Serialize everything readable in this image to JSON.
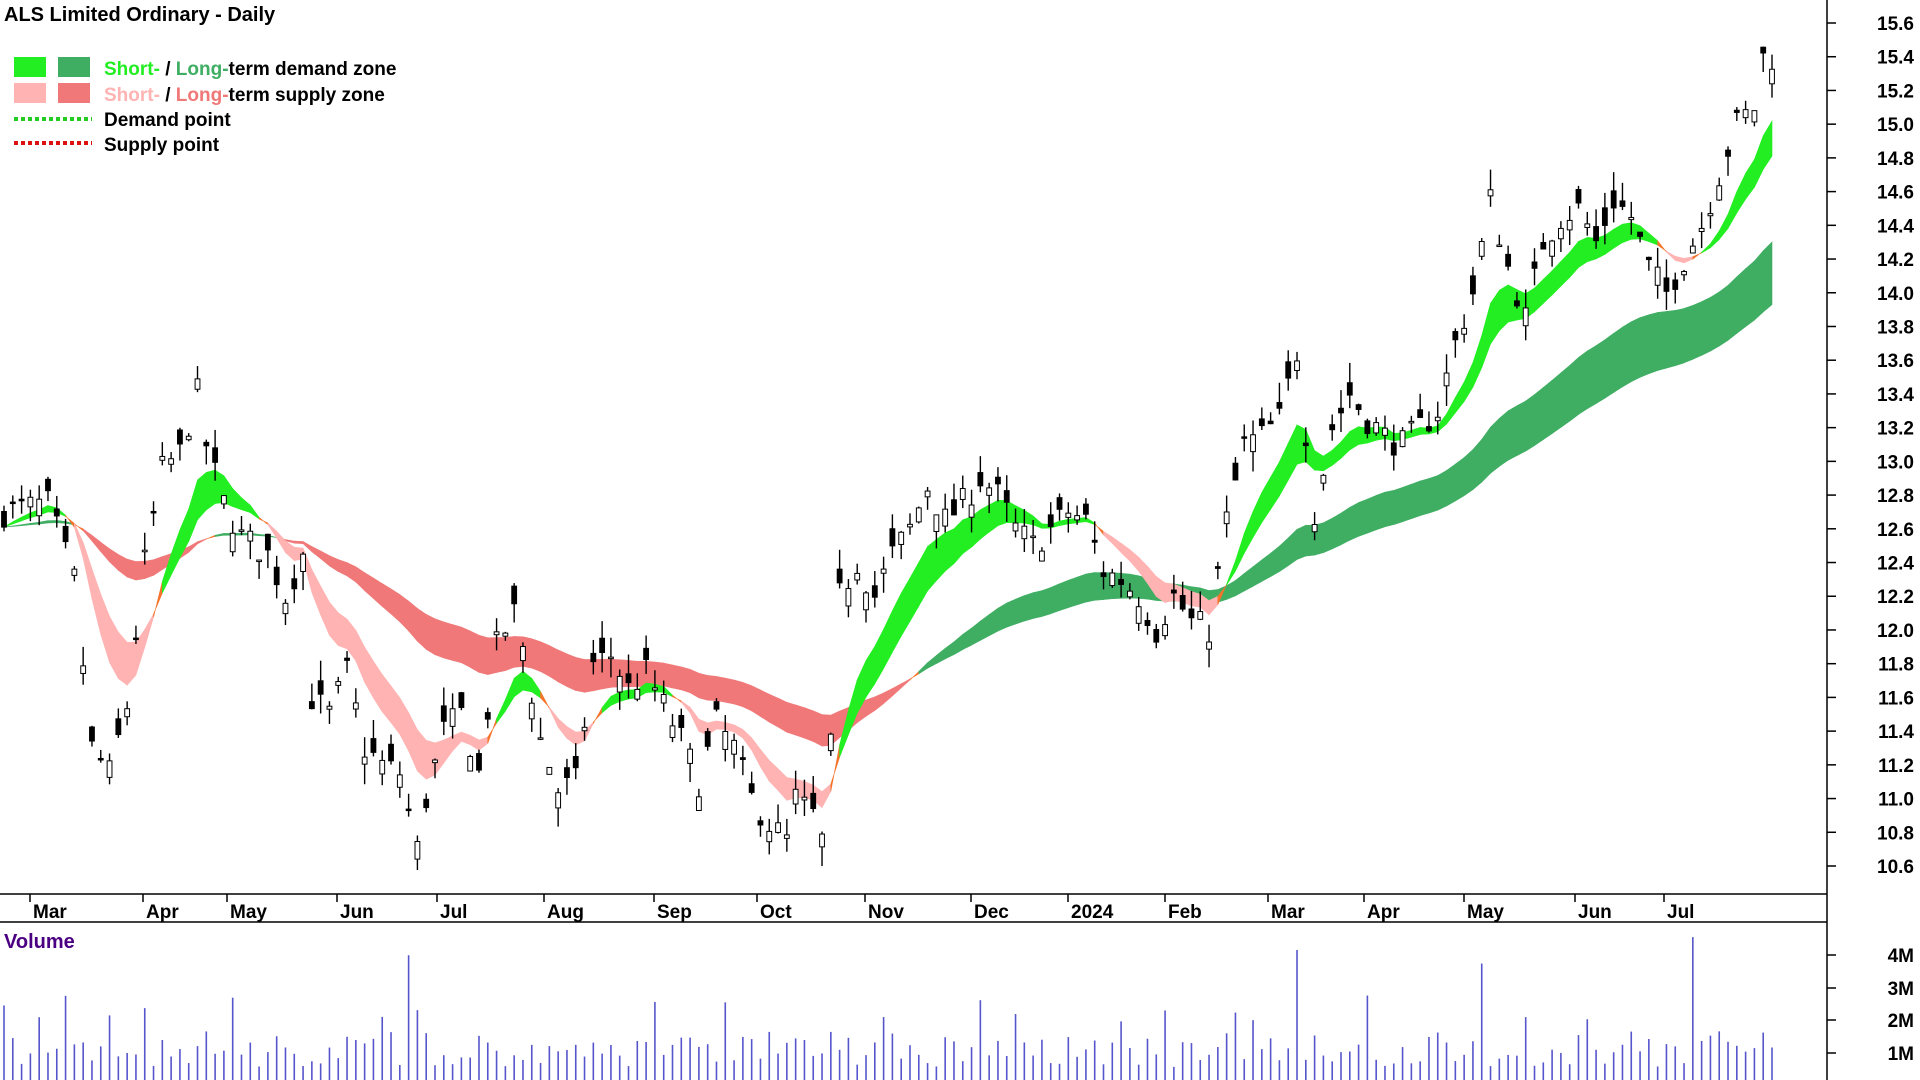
{
  "chart_data": {
    "type": "candlestick",
    "title": "ALS Limited Ordinary - Daily",
    "y_ticks": [
      10.6,
      10.8,
      11.0,
      11.2,
      11.4,
      11.6,
      11.8,
      12.0,
      12.2,
      12.4,
      12.6,
      12.8,
      13.0,
      13.2,
      13.4,
      13.6,
      13.8,
      14.0,
      14.2,
      14.4,
      14.6,
      14.8,
      15.0,
      15.2,
      15.4,
      15.6
    ],
    "x_labels": [
      "Mar",
      "Apr",
      "May",
      "Jun",
      "Jul",
      "Aug",
      "Sep",
      "Oct",
      "Nov",
      "Dec",
      "2024",
      "Feb",
      "Mar",
      "Apr",
      "May",
      "Jun",
      "Jul"
    ],
    "legend": [
      {
        "a": "Short-",
        "sep": " / ",
        "b": "Long-",
        "rest": "term demand zone",
        "color_a": "#22ee22",
        "color_b": "#3fae63"
      },
      {
        "a": "Short-",
        "sep": " / ",
        "b": "Long-",
        "rest": "term supply zone",
        "color_a": "#ffb3b3",
        "color_b": "#f07878"
      },
      {
        "text": "Demand point",
        "color": "#22cc22"
      },
      {
        "text": "Supply point",
        "color": "#dd1111"
      }
    ],
    "colors": {
      "short_demand": "#22ee22",
      "long_demand": "#3fae63",
      "short_supply": "#ffb3b3",
      "long_supply": "#f07878",
      "transition": "#f5732a",
      "volume": "#5555cc",
      "title_volume": "#4b0082"
    },
    "price_path": [
      [
        0,
        12.7
      ],
      [
        5,
        12.75
      ],
      [
        8,
        12.3
      ],
      [
        10,
        11.3
      ],
      [
        12,
        11.15
      ],
      [
        14,
        11.55
      ],
      [
        16,
        12.4
      ],
      [
        18,
        12.95
      ],
      [
        20,
        13.05
      ],
      [
        22,
        13.4
      ],
      [
        23,
        13.1
      ],
      [
        25,
        12.75
      ],
      [
        27,
        12.55
      ],
      [
        30,
        12.45
      ],
      [
        32,
        12.2
      ],
      [
        34,
        12.45
      ],
      [
        35,
        11.6
      ],
      [
        37,
        11.5
      ],
      [
        39,
        11.75
      ],
      [
        41,
        11.3
      ],
      [
        43,
        11.2
      ],
      [
        45,
        11.15
      ],
      [
        47,
        10.7
      ],
      [
        48,
        11.0
      ],
      [
        50,
        11.4
      ],
      [
        52,
        11.5
      ],
      [
        54,
        11.15
      ],
      [
        56,
        11.9
      ],
      [
        58,
        12.1
      ],
      [
        59,
        11.9
      ],
      [
        61,
        11.35
      ],
      [
        63,
        11.05
      ],
      [
        65,
        11.1
      ],
      [
        67,
        11.8
      ],
      [
        69,
        11.85
      ],
      [
        71,
        11.65
      ],
      [
        73,
        11.75
      ],
      [
        75,
        11.55
      ],
      [
        77,
        11.35
      ],
      [
        79,
        11.1
      ],
      [
        81,
        11.45
      ],
      [
        83,
        11.3
      ],
      [
        85,
        11.0
      ],
      [
        87,
        10.85
      ],
      [
        89,
        10.75
      ],
      [
        90,
        11.0
      ],
      [
        92,
        10.9
      ],
      [
        93,
        10.75
      ],
      [
        94,
        11.3
      ],
      [
        95,
        12.2
      ],
      [
        97,
        12.4
      ],
      [
        99,
        12.2
      ],
      [
        101,
        12.45
      ],
      [
        103,
        12.6
      ],
      [
        105,
        12.85
      ],
      [
        107,
        12.65
      ],
      [
        109,
        12.75
      ],
      [
        111,
        12.9
      ],
      [
        113,
        12.8
      ],
      [
        115,
        12.6
      ],
      [
        117,
        12.5
      ],
      [
        119,
        12.6
      ],
      [
        121,
        12.7
      ],
      [
        123,
        12.65
      ],
      [
        125,
        12.35
      ],
      [
        127,
        12.3
      ],
      [
        129,
        12.2
      ],
      [
        131,
        12.0
      ],
      [
        133,
        12.2
      ],
      [
        135,
        12.05
      ],
      [
        137,
        12.0
      ],
      [
        139,
        12.65
      ],
      [
        141,
        13.1
      ],
      [
        143,
        13.15
      ],
      [
        145,
        13.25
      ],
      [
        147,
        13.65
      ],
      [
        149,
        12.7
      ],
      [
        151,
        13.2
      ],
      [
        153,
        13.4
      ],
      [
        155,
        13.25
      ],
      [
        157,
        13.15
      ],
      [
        159,
        13.1
      ],
      [
        161,
        13.2
      ],
      [
        163,
        13.3
      ],
      [
        165,
        13.7
      ],
      [
        167,
        14.0
      ],
      [
        169,
        14.55
      ],
      [
        171,
        14.15
      ],
      [
        173,
        13.85
      ],
      [
        175,
        14.3
      ],
      [
        177,
        14.45
      ],
      [
        179,
        14.5
      ],
      [
        181,
        14.3
      ],
      [
        183,
        14.55
      ],
      [
        185,
        14.45
      ],
      [
        187,
        14.15
      ],
      [
        189,
        14.0
      ],
      [
        191,
        14.2
      ],
      [
        193,
        14.4
      ],
      [
        195,
        14.7
      ],
      [
        197,
        15.0
      ],
      [
        199,
        15.1
      ],
      [
        200,
        15.4
      ]
    ],
    "candles": [],
    "volumes": []
  },
  "panels": {
    "volume_title": "Volume",
    "volume_ticks": [
      "1M",
      "2M",
      "3M",
      "4M"
    ]
  }
}
